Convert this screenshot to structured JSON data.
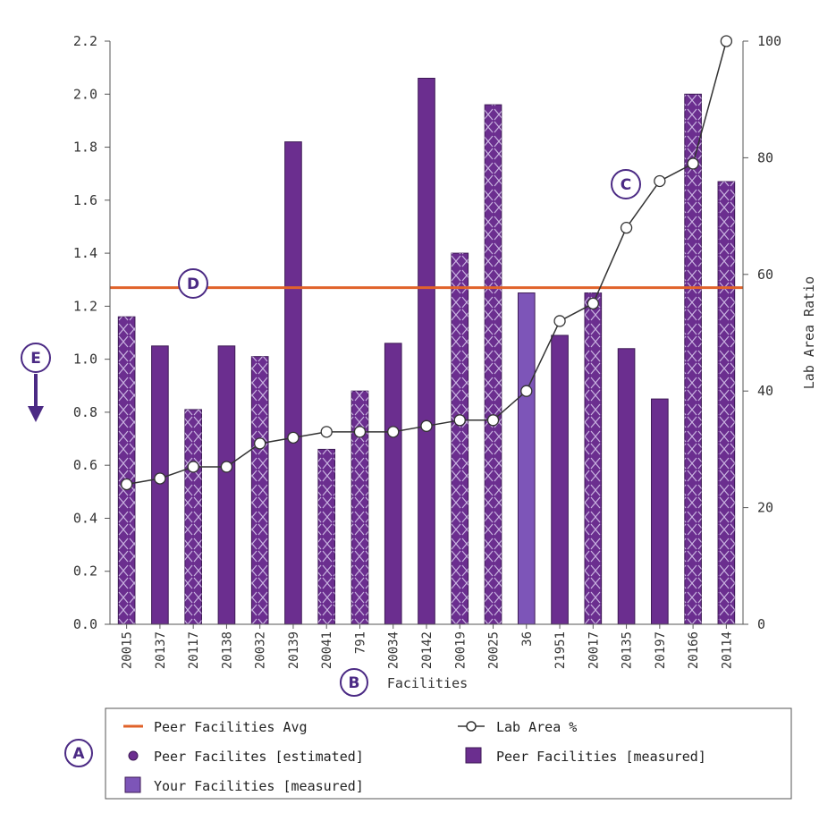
{
  "chart_data": {
    "type": "bar",
    "categories": [
      "20015",
      "20137",
      "20117",
      "20138",
      "20032",
      "20139",
      "20041",
      "791",
      "20034",
      "20142",
      "20019",
      "20025",
      "36",
      "21951",
      "20017",
      "20135",
      "20197",
      "20166",
      "20114"
    ],
    "series": [
      {
        "name": "Peer Facilites [estimated]",
        "kind": "bar",
        "axis": "left",
        "values": [
          1.16,
          null,
          0.81,
          null,
          1.01,
          null,
          0.66,
          0.88,
          null,
          null,
          1.4,
          1.96,
          null,
          null,
          1.25,
          null,
          null,
          2.0,
          1.67
        ]
      },
      {
        "name": "Peer Facilities [measured]",
        "kind": "bar",
        "axis": "left",
        "values": [
          null,
          1.05,
          null,
          1.05,
          null,
          1.82,
          null,
          null,
          1.06,
          2.06,
          null,
          null,
          null,
          1.09,
          null,
          1.04,
          0.85,
          null,
          null
        ]
      },
      {
        "name": "Your Facilities [measured]",
        "kind": "bar",
        "axis": "left",
        "values": [
          null,
          null,
          null,
          null,
          null,
          null,
          null,
          null,
          null,
          null,
          null,
          null,
          1.25,
          null,
          null,
          null,
          null,
          null,
          null
        ]
      },
      {
        "name": "Lab Area %",
        "kind": "line",
        "axis": "right",
        "values": [
          24,
          25,
          27,
          27,
          31,
          32,
          33,
          33,
          33,
          34,
          35,
          35,
          40,
          52,
          55,
          68,
          76,
          79,
          100
        ]
      },
      {
        "name": "Peer Facilities Avg",
        "kind": "hline",
        "axis": "left",
        "value": 1.27
      }
    ],
    "xlabel": "Facilities",
    "ylabel": "",
    "y2label": "Lab Area Ratio",
    "ylim": [
      0.0,
      2.2
    ],
    "y2lim": [
      0,
      100
    ],
    "yticks": [
      "0.0",
      "0.2",
      "0.4",
      "0.6",
      "0.8",
      "1.0",
      "1.2",
      "1.4",
      "1.6",
      "1.8",
      "2.0",
      "2.2"
    ],
    "y2ticks": [
      "0",
      "20",
      "40",
      "60",
      "80",
      "100"
    ],
    "grid": false,
    "legend_position": "bottom",
    "colors": {
      "bar": "#6b2e8f",
      "bar_stroke": "#3d1a55",
      "your_bar": "#7d55b8",
      "avg_line": "#e0622a",
      "lab_line": "#333333",
      "hatch": "#c9b3e0",
      "callout": "#4b2a84"
    }
  },
  "legend": {
    "items": [
      {
        "label": "Peer Facilities Avg"
      },
      {
        "label": "Lab Area %"
      },
      {
        "label": "Peer Facilites [estimated]"
      },
      {
        "label": "Peer Facilities [measured]"
      },
      {
        "label": "Your Facilities [measured]"
      }
    ]
  },
  "callouts": {
    "A": "A",
    "B": "B",
    "C": "C",
    "D": "D",
    "E": "E"
  }
}
